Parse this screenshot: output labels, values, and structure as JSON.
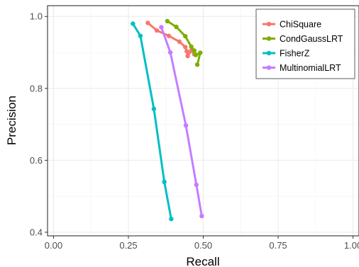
{
  "chart_data": {
    "type": "line",
    "xlabel": "Recall",
    "ylabel": "Precision",
    "xlim": [
      -0.02,
      1.02
    ],
    "ylim": [
      0.39,
      1.03
    ],
    "x_ticks": [
      0.0,
      0.25,
      0.5,
      0.75,
      1.0
    ],
    "x_tick_labels": [
      "0.00",
      "0.25",
      "0.50",
      "0.75",
      "1.00"
    ],
    "y_ticks": [
      0.4,
      0.6,
      0.8,
      1.0
    ],
    "y_tick_labels": [
      "0.4",
      "0.6",
      "0.8",
      "1.0"
    ],
    "grid": true,
    "legend_position": "top-right",
    "series": [
      {
        "name": "ChiSquare",
        "color": "#F8766D",
        "points": [
          [
            0.315,
            0.982
          ],
          [
            0.345,
            0.961
          ],
          [
            0.385,
            0.946
          ],
          [
            0.42,
            0.93
          ],
          [
            0.44,
            0.915
          ],
          [
            0.445,
            0.903
          ],
          [
            0.448,
            0.89
          ],
          [
            0.46,
            0.905
          ],
          [
            0.47,
            0.895
          ]
        ]
      },
      {
        "name": "CondGaussLRT",
        "color": "#7CAE00",
        "points": [
          [
            0.38,
            0.987
          ],
          [
            0.41,
            0.971
          ],
          [
            0.44,
            0.945
          ],
          [
            0.46,
            0.916
          ],
          [
            0.47,
            0.905
          ],
          [
            0.475,
            0.893
          ],
          [
            0.49,
            0.899
          ],
          [
            0.48,
            0.866
          ]
        ]
      },
      {
        "name": "FisherZ",
        "color": "#00BFC4",
        "points": [
          [
            0.265,
            0.98
          ],
          [
            0.29,
            0.946
          ],
          [
            0.335,
            0.743
          ],
          [
            0.37,
            0.54
          ],
          [
            0.393,
            0.437
          ]
        ]
      },
      {
        "name": "MultinomialLRT",
        "color": "#C77CFF",
        "points": [
          [
            0.36,
            0.97
          ],
          [
            0.39,
            0.9
          ],
          [
            0.442,
            0.697
          ],
          [
            0.477,
            0.532
          ],
          [
            0.495,
            0.445
          ]
        ]
      }
    ]
  }
}
